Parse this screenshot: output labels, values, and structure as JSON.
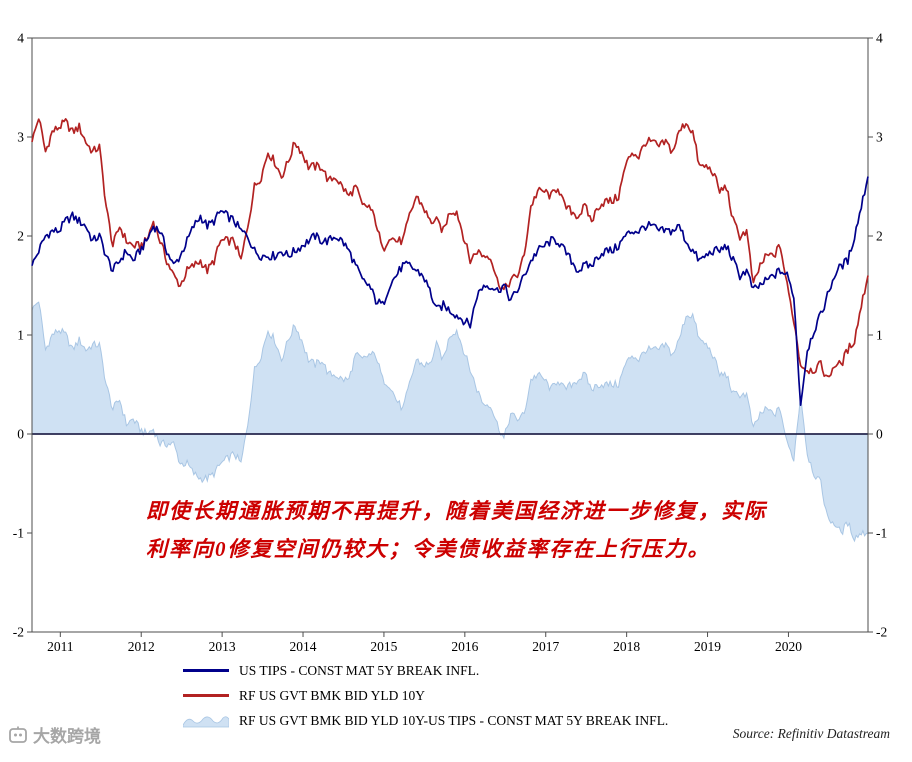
{
  "annotation": {
    "line1": "即使长期通胀预期不再提升，随着美国经济进一步修复，实际",
    "line2": "利率向0修复空间仍较大；令美债收益率存在上行压力。",
    "color": "#cc0000"
  },
  "legend": [
    {
      "type": "line",
      "color": "#00008b",
      "label": "US TIPS - CONST MAT 5Y BREAK INFL."
    },
    {
      "type": "line",
      "color": "#b22222",
      "label": "RF US GVT BMK BID YLD 10Y"
    },
    {
      "type": "area",
      "color": "#cfe1f3",
      "stroke": "#a9c6e4",
      "label": "RF US GVT BMK BID YLD 10Y-US TIPS - CONST MAT 5Y BREAK INFL."
    }
  ],
  "source": {
    "text": "Source: Refinitiv Datastream"
  },
  "watermark": {
    "text": "大数跨境"
  },
  "chart_data": {
    "type": "line",
    "title": "",
    "xlabel": "",
    "ylabel": "",
    "unit": "percent",
    "x_start_year": 2010.65,
    "x_step_years": 0.0833333,
    "x_tick_years": [
      2011,
      2012,
      2013,
      2014,
      2015,
      2016,
      2017,
      2018,
      2019,
      2020
    ],
    "ylim": [
      -2,
      4
    ],
    "y_ticks": [
      4,
      3,
      2,
      1,
      0,
      -1,
      -2
    ],
    "grid": false,
    "zero_line": true,
    "dual_axis_labels": true,
    "legend_position": "bottom-left",
    "colors": {
      "frame": "#4d4d4d",
      "zero_line": "#26264d",
      "axis_text": "#000000"
    },
    "series": [
      {
        "name": "US TIPS - CONST MAT 5Y BREAK INFL.",
        "color": "#00008b",
        "values": [
          1.7,
          1.85,
          2.0,
          2.05,
          2.05,
          2.15,
          2.2,
          2.15,
          2.1,
          1.95,
          2.0,
          1.8,
          1.65,
          1.75,
          1.85,
          1.75,
          1.85,
          1.95,
          2.1,
          2.05,
          1.85,
          1.7,
          1.8,
          1.95,
          2.1,
          2.2,
          2.1,
          2.15,
          2.25,
          2.2,
          2.15,
          2.05,
          2.0,
          1.85,
          1.8,
          1.8,
          1.8,
          1.85,
          1.8,
          1.85,
          1.9,
          1.95,
          2.0,
          1.95,
          1.95,
          2.0,
          1.95,
          1.85,
          1.7,
          1.55,
          1.5,
          1.35,
          1.3,
          1.5,
          1.6,
          1.7,
          1.7,
          1.65,
          1.6,
          1.45,
          1.25,
          1.3,
          1.25,
          1.2,
          1.15,
          1.1,
          1.4,
          1.5,
          1.5,
          1.45,
          1.5,
          1.35,
          1.45,
          1.6,
          1.75,
          1.85,
          1.9,
          1.95,
          1.95,
          1.85,
          1.75,
          1.65,
          1.7,
          1.7,
          1.8,
          1.85,
          1.85,
          1.9,
          2.0,
          2.05,
          2.05,
          2.1,
          2.1,
          2.05,
          2.05,
          2.05,
          2.1,
          1.95,
          1.85,
          1.75,
          1.8,
          1.85,
          1.85,
          1.9,
          1.75,
          1.6,
          1.65,
          1.45,
          1.5,
          1.55,
          1.6,
          1.65,
          1.6,
          1.4,
          0.3,
          0.85,
          1.05,
          1.2,
          1.4,
          1.6,
          1.7,
          1.75,
          2.0,
          2.3,
          2.6
        ]
      },
      {
        "name": "RF US GVT BMK BID YLD 10Y",
        "color": "#b22222",
        "values": [
          2.95,
          3.2,
          2.85,
          3.05,
          3.1,
          3.15,
          3.05,
          3.1,
          2.95,
          2.85,
          2.9,
          2.3,
          1.9,
          2.1,
          1.95,
          1.9,
          1.9,
          1.95,
          2.15,
          1.95,
          1.75,
          1.6,
          1.5,
          1.65,
          1.7,
          1.75,
          1.65,
          1.75,
          1.95,
          1.95,
          1.95,
          1.75,
          2.1,
          2.5,
          2.6,
          2.85,
          2.75,
          2.6,
          2.75,
          2.95,
          2.85,
          2.7,
          2.7,
          2.7,
          2.55,
          2.6,
          2.5,
          2.4,
          2.5,
          2.3,
          2.3,
          2.15,
          1.85,
          2.0,
          1.95,
          1.95,
          2.2,
          2.4,
          2.3,
          2.15,
          2.15,
          2.05,
          2.25,
          2.25,
          2.0,
          1.75,
          1.85,
          1.8,
          1.8,
          1.55,
          1.45,
          1.55,
          1.6,
          1.8,
          2.3,
          2.45,
          2.45,
          2.4,
          2.5,
          2.3,
          2.25,
          2.2,
          2.3,
          2.15,
          2.3,
          2.35,
          2.35,
          2.4,
          2.7,
          2.85,
          2.8,
          2.95,
          2.95,
          2.9,
          2.95,
          2.85,
          3.05,
          3.15,
          3.05,
          2.7,
          2.7,
          2.65,
          2.45,
          2.5,
          2.15,
          2.0,
          2.05,
          1.5,
          1.7,
          1.8,
          1.8,
          1.9,
          1.5,
          1.15,
          0.7,
          0.65,
          0.65,
          0.7,
          0.55,
          0.7,
          0.7,
          0.85,
          0.95,
          1.3,
          1.6
        ]
      }
    ],
    "area_series": {
      "name": "RF US GVT BMK BID YLD 10Y-US TIPS - CONST MAT 5Y BREAK INFL.",
      "derivation": "series[1].values minus series[0].values",
      "fill": "#cfe1f3",
      "stroke": "#a9c6e4",
      "baseline": 0
    }
  }
}
